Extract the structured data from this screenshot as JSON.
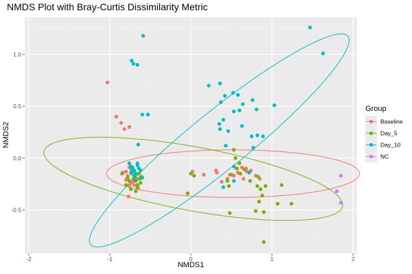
{
  "chart_data": {
    "type": "scatter",
    "title": "NMDS Plot with Bray-Curtis Dissimilarity Metric",
    "xlabel": "NMDS1",
    "ylabel": "NMDS2",
    "xlim": [
      -2.05,
      2.05
    ],
    "ylim": [
      -0.92,
      1.36
    ],
    "x_ticks": [
      -2,
      -1,
      0,
      1,
      2
    ],
    "x_tick_labels": [
      "-2",
      "-1",
      "0",
      "1",
      "2"
    ],
    "y_ticks": [
      -0.5,
      0.0,
      0.5,
      1.0
    ],
    "y_tick_labels": [
      "-0.5",
      "0.0",
      "0.5",
      "1.0"
    ],
    "grid": true,
    "legend": {
      "title": "Group",
      "position": "right"
    },
    "series": [
      {
        "name": "Baseline",
        "color": "#F8766D",
        "ellipse": {
          "cx": 0.52,
          "cy": -0.15,
          "rx": 1.56,
          "ry": 0.23,
          "angle_deg": 0
        },
        "x": [
          -1.03,
          -0.92,
          -0.86,
          -0.82,
          -0.76,
          -0.84,
          -0.74,
          -0.78,
          -0.62,
          -0.8,
          -0.74,
          -0.71,
          -0.67,
          -0.7,
          -0.76,
          -0.68,
          -0.72,
          -0.8,
          -0.73,
          -0.65,
          -0.77,
          -0.69,
          -0.7,
          -0.76,
          0.02,
          0.16,
          0.32,
          0.45,
          0.38,
          0.31,
          0.48,
          0.56,
          0.63,
          0.68,
          0.74,
          0.69,
          0.65,
          0.58,
          0.8,
          0.85,
          0.53,
          -0.64
        ],
        "y": [
          0.73,
          0.4,
          0.34,
          0.28,
          0.3,
          -0.14,
          -0.08,
          -0.17,
          -0.19,
          -0.21,
          -0.24,
          -0.12,
          -0.2,
          -0.26,
          -0.09,
          -0.21,
          -0.23,
          -0.13,
          -0.15,
          -0.29,
          -0.37,
          -0.19,
          -0.22,
          -0.27,
          -0.13,
          -0.16,
          -0.14,
          -0.2,
          -0.23,
          -0.12,
          -0.16,
          -0.1,
          -0.09,
          -0.1,
          -0.12,
          -0.13,
          -0.2,
          -0.14,
          -0.17,
          -0.2,
          -0.17,
          -0.2
        ]
      },
      {
        "name": "Day_5",
        "color": "#7CAE00",
        "ellipse": {
          "cx": 0.03,
          "cy": -0.2,
          "rx": 1.86,
          "ry": 0.31,
          "angle_deg": -8
        },
        "x": [
          -0.85,
          -0.78,
          -0.72,
          -0.68,
          -0.76,
          -0.8,
          -0.66,
          -0.69,
          -0.73,
          -0.64,
          -0.71,
          -0.74,
          -0.61,
          -0.62,
          -0.66,
          -0.68,
          -0.7,
          -0.63,
          0.0,
          0.04,
          -0.04,
          0.45,
          0.47,
          0.5,
          0.53,
          0.57,
          0.61,
          0.55,
          0.6,
          0.66,
          0.73,
          0.82,
          0.86,
          0.84,
          0.88,
          0.83,
          0.92,
          0.9,
          1.07,
          1.12,
          1.24,
          0.8,
          0.9,
          0.48
        ],
        "y": [
          -0.15,
          -0.19,
          -0.09,
          -0.15,
          -0.22,
          -0.26,
          -0.26,
          -0.18,
          -0.11,
          -0.15,
          -0.2,
          -0.3,
          -0.18,
          -0.24,
          -0.28,
          -0.32,
          -0.12,
          -0.2,
          -0.15,
          -0.17,
          -0.34,
          -0.22,
          -0.27,
          -0.16,
          0.08,
          -0.1,
          -0.15,
          0.0,
          -0.05,
          -0.11,
          -0.22,
          -0.27,
          -0.3,
          -0.42,
          -0.36,
          -0.18,
          -0.27,
          -0.52,
          -0.44,
          -0.26,
          -0.44,
          -0.51,
          -0.81,
          -0.53
        ]
      },
      {
        "name": "Day_10",
        "color": "#00BFC4",
        "ellipse": {
          "cx": 0.35,
          "cy": 0.17,
          "rx": 1.88,
          "ry": 0.3,
          "angle_deg": 32
        },
        "x": [
          -0.59,
          -0.66,
          -0.73,
          -0.71,
          -0.6,
          -0.53,
          -0.65,
          -0.76,
          -0.74,
          -0.72,
          -0.7,
          -0.68,
          -0.66,
          -0.64,
          -0.62,
          -0.7,
          -0.74,
          -0.66,
          -0.6,
          -0.68,
          -0.72,
          0.22,
          0.36,
          0.42,
          0.37,
          0.52,
          0.58,
          0.64,
          0.76,
          0.81,
          1.03,
          0.36,
          0.4,
          0.53,
          0.6,
          0.35,
          0.46,
          0.63,
          0.75,
          0.82,
          0.89,
          0.77,
          0.43,
          0.53,
          0.72,
          1.47,
          1.63,
          0.53,
          0.4
        ],
        "y": [
          1.18,
          0.9,
          0.94,
          0.91,
          0.42,
          0.42,
          0.13,
          -0.05,
          -0.08,
          -0.1,
          -0.12,
          -0.15,
          -0.07,
          -0.1,
          -0.12,
          -0.17,
          -0.14,
          -0.05,
          -0.19,
          -0.22,
          -0.13,
          0.7,
          0.72,
          0.6,
          0.54,
          0.63,
          0.61,
          0.52,
          0.56,
          0.47,
          0.51,
          0.28,
          0.37,
          0.45,
          0.46,
          0.33,
          0.26,
          0.31,
          0.21,
          0.22,
          0.21,
          0.1,
          0.12,
          -0.08,
          -0.14,
          1.26,
          1.01,
          -0.22,
          -0.28
        ]
      },
      {
        "name": "NC",
        "color": "#C77CFF",
        "x": [
          1.85,
          1.8,
          1.85
        ],
        "y": [
          -0.17,
          -0.32,
          -0.43
        ]
      }
    ]
  }
}
